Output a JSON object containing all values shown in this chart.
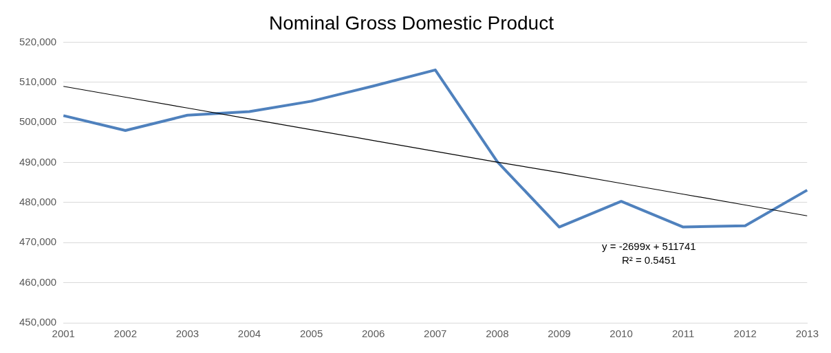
{
  "chart_data": {
    "type": "line",
    "title": "Nominal Gross Domestic Product",
    "categories": [
      "2001",
      "2002",
      "2003",
      "2004",
      "2005",
      "2006",
      "2007",
      "2008",
      "2009",
      "2010",
      "2011",
      "2012",
      "2013"
    ],
    "series": [
      {
        "color": "#4f81bd",
        "values": [
          501700,
          498000,
          501800,
          502700,
          505300,
          509100,
          513100,
          490200,
          473900,
          480300,
          473900,
          474200,
          483100
        ]
      },
      {
        "type": "line",
        "color": "#000000",
        "values": [
          509000,
          506300,
          503600,
          500900,
          498200,
          495500,
          492800,
          490100,
          487500,
          484800,
          482100,
          479400,
          476700
        ]
      }
    ],
    "ylim": [
      450000,
      520000
    ],
    "yticks": [
      {
        "value": 450000,
        "label": "450,000"
      },
      {
        "value": 460000,
        "label": "460,000"
      },
      {
        "value": 470000,
        "label": "470,000"
      },
      {
        "value": 480000,
        "label": "480,000"
      },
      {
        "value": 490000,
        "label": "490,000"
      },
      {
        "value": 500000,
        "label": "500,000"
      },
      {
        "value": 510000,
        "label": "510,000"
      },
      {
        "value": 520000,
        "label": "520,000"
      }
    ],
    "grid": "y",
    "legend": false,
    "marker": "none",
    "annotations": [
      "y = -2699x + 511741",
      "R² = 0.5451"
    ]
  }
}
